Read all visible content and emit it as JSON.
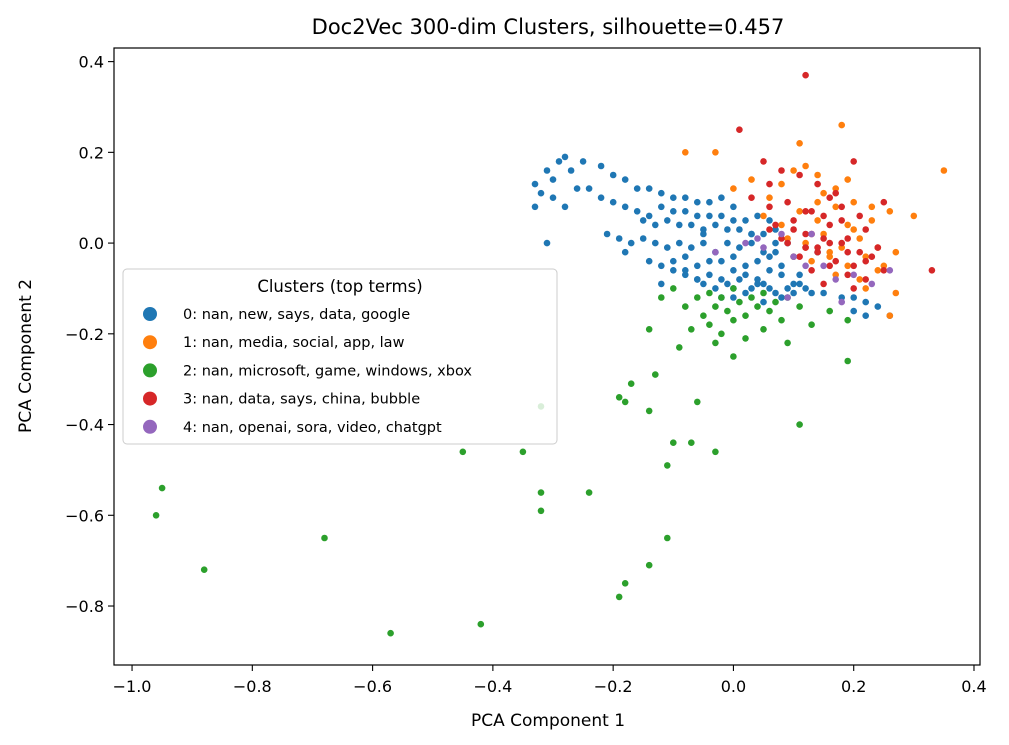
{
  "chart_data": {
    "type": "scatter",
    "title": "Doc2Vec 300-dim Clusters, silhouette=0.457",
    "xlabel": "PCA Component 1",
    "ylabel": "PCA Component 2",
    "xlim": [
      -1.03,
      0.41
    ],
    "ylim": [
      -0.93,
      0.43
    ],
    "xticks": [
      -1.0,
      -0.8,
      -0.6,
      -0.4,
      -0.2,
      0.0,
      0.2,
      0.4
    ],
    "xtick_labels": [
      "−1.0",
      "−0.8",
      "−0.6",
      "−0.4",
      "−0.2",
      "0.0",
      "0.2",
      "0.4"
    ],
    "yticks": [
      0.4,
      0.2,
      0.0,
      -0.2,
      -0.4,
      -0.6,
      -0.8
    ],
    "ytick_labels": [
      "0.4",
      "0.2",
      "0.0",
      "−0.2",
      "−0.4",
      "−0.6",
      "−0.8"
    ],
    "grid": false,
    "legend": {
      "title": "Clusters (top terms)",
      "placement": "center-left"
    },
    "series": [
      {
        "name": "0: nan, new, says, data, google",
        "color": "#1f77b4",
        "x": [
          -0.33,
          -0.33,
          -0.32,
          -0.31,
          -0.3,
          -0.29,
          -0.28,
          -0.27,
          -0.26,
          -0.3,
          -0.28,
          -0.25,
          -0.22,
          -0.2,
          -0.18,
          -0.16,
          -0.14,
          -0.12,
          -0.1,
          -0.08,
          -0.06,
          -0.04,
          -0.02,
          0.0,
          -0.24,
          -0.22,
          -0.2,
          -0.18,
          -0.16,
          -0.14,
          -0.12,
          -0.1,
          -0.08,
          -0.06,
          -0.04,
          -0.02,
          0.0,
          0.02,
          0.04,
          0.06,
          -0.15,
          -0.13,
          -0.11,
          -0.09,
          -0.07,
          -0.05,
          -0.03,
          -0.01,
          0.01,
          0.03,
          0.05,
          0.07,
          -0.21,
          -0.19,
          -0.17,
          -0.15,
          -0.13,
          -0.11,
          -0.09,
          -0.07,
          -0.05,
          -0.03,
          -0.01,
          0.01,
          0.03,
          0.05,
          0.07,
          0.09,
          -0.14,
          -0.12,
          -0.1,
          -0.08,
          -0.06,
          -0.04,
          -0.02,
          0.0,
          0.02,
          0.04,
          0.06,
          0.08,
          -0.1,
          -0.08,
          -0.06,
          -0.04,
          -0.02,
          0.0,
          0.02,
          0.04,
          0.06,
          0.08,
          0.1,
          -0.05,
          -0.03,
          -0.01,
          0.01,
          0.03,
          0.05,
          0.07,
          0.09,
          0.11,
          0.13,
          -0.02,
          0.0,
          0.02,
          0.04,
          0.06,
          0.08,
          0.1,
          0.12,
          0.15,
          0.18,
          0.2,
          0.22,
          0.24,
          0.2,
          0.22,
          -0.31,
          -0.18,
          -0.08,
          -0.05,
          0.03,
          0.07,
          0.1,
          0.14,
          -0.12,
          -0.06,
          0.0,
          0.05,
          0.11,
          0.26
        ],
        "y": [
          0.13,
          0.08,
          0.11,
          0.16,
          0.14,
          0.18,
          0.19,
          0.16,
          0.12,
          0.1,
          0.08,
          0.18,
          0.17,
          0.15,
          0.14,
          0.12,
          0.12,
          0.11,
          0.1,
          0.1,
          0.09,
          0.09,
          0.1,
          0.08,
          0.12,
          0.1,
          0.09,
          0.08,
          0.07,
          0.06,
          0.08,
          0.07,
          0.07,
          0.06,
          0.06,
          0.06,
          0.05,
          0.05,
          0.06,
          0.05,
          0.05,
          0.04,
          0.05,
          0.04,
          0.04,
          0.03,
          0.04,
          0.03,
          0.03,
          0.02,
          0.02,
          0.03,
          0.02,
          0.01,
          0.0,
          0.01,
          0.0,
          -0.01,
          0.0,
          -0.01,
          0.0,
          -0.02,
          0.0,
          -0.01,
          0.0,
          -0.02,
          -0.02,
          0.0,
          -0.04,
          -0.05,
          -0.04,
          -0.03,
          -0.05,
          -0.04,
          -0.04,
          -0.03,
          -0.05,
          -0.04,
          -0.03,
          -0.05,
          -0.06,
          -0.07,
          -0.08,
          -0.07,
          -0.08,
          -0.06,
          -0.07,
          -0.08,
          -0.06,
          -0.07,
          -0.09,
          -0.09,
          -0.1,
          -0.09,
          -0.08,
          -0.1,
          -0.09,
          -0.11,
          -0.1,
          -0.09,
          -0.11,
          -0.12,
          -0.1,
          -0.11,
          -0.09,
          -0.1,
          -0.12,
          -0.11,
          -0.1,
          -0.11,
          -0.12,
          -0.12,
          -0.13,
          -0.14,
          -0.15,
          -0.16,
          0.0,
          -0.02,
          -0.06,
          0.02,
          0.02,
          0.0,
          -0.03,
          -0.02,
          -0.09,
          -0.08,
          -0.12,
          -0.13,
          -0.07,
          -0.16
        ]
      },
      {
        "name": "1: nan, media, social, app, law",
        "color": "#ff7f0e",
        "x": [
          -0.08,
          -0.03,
          0.0,
          0.03,
          0.06,
          0.08,
          0.1,
          0.12,
          0.15,
          0.18,
          0.19,
          0.11,
          0.14,
          0.17,
          0.2,
          0.23,
          0.26,
          0.3,
          0.35,
          0.05,
          0.08,
          0.11,
          0.14,
          0.17,
          0.2,
          0.23,
          0.09,
          0.12,
          0.15,
          0.18,
          0.21,
          0.24,
          0.27,
          0.1,
          0.13,
          0.16,
          0.19,
          0.22,
          0.25,
          0.17,
          0.21,
          0.24,
          0.27,
          0.12,
          0.16,
          0.19,
          0.22,
          0.26,
          0.14
        ],
        "y": [
          0.2,
          0.2,
          0.12,
          0.14,
          0.1,
          0.13,
          0.16,
          0.17,
          0.11,
          0.26,
          0.14,
          0.22,
          0.15,
          0.12,
          0.09,
          0.08,
          0.07,
          0.06,
          0.16,
          0.06,
          0.04,
          0.07,
          0.05,
          0.08,
          0.03,
          0.05,
          0.01,
          0.0,
          0.02,
          -0.01,
          0.01,
          -0.01,
          -0.02,
          -0.03,
          -0.04,
          -0.02,
          -0.05,
          -0.03,
          -0.05,
          -0.07,
          -0.08,
          -0.06,
          -0.11,
          -0.01,
          -0.03,
          0.04,
          -0.1,
          -0.16,
          0.09
        ]
      },
      {
        "name": "2: nan, microsoft, game, windows, xbox",
        "color": "#2ca02c",
        "x": [
          -0.12,
          -0.1,
          -0.08,
          -0.06,
          -0.05,
          -0.04,
          -0.03,
          -0.02,
          -0.01,
          0.0,
          0.01,
          0.02,
          0.03,
          0.04,
          0.05,
          0.06,
          0.07,
          0.08,
          0.09,
          0.11,
          0.13,
          0.16,
          0.19,
          -0.14,
          -0.07,
          -0.04,
          -0.02,
          0.0,
          0.02,
          0.05,
          -0.09,
          -0.03,
          0.0,
          0.09,
          0.19,
          -0.17,
          -0.13,
          -0.18,
          -0.06,
          -0.14,
          -0.19,
          -0.32,
          -0.35,
          -0.45,
          -0.1,
          -0.07,
          -0.03,
          0.11,
          -0.11,
          -0.32,
          -0.32,
          -0.24,
          -0.95,
          -0.96,
          -0.68,
          -0.88,
          -0.11,
          -0.14,
          -0.18,
          -0.19,
          -0.42,
          -0.57
        ],
        "y": [
          -0.12,
          -0.1,
          -0.14,
          -0.12,
          -0.16,
          -0.11,
          -0.14,
          -0.12,
          -0.15,
          -0.1,
          -0.13,
          -0.16,
          -0.12,
          -0.14,
          -0.11,
          -0.15,
          -0.13,
          -0.17,
          -0.12,
          -0.14,
          -0.18,
          -0.15,
          -0.17,
          -0.19,
          -0.19,
          -0.18,
          -0.2,
          -0.17,
          -0.21,
          -0.19,
          -0.23,
          -0.22,
          -0.25,
          -0.22,
          -0.26,
          -0.31,
          -0.29,
          -0.35,
          -0.35,
          -0.37,
          -0.34,
          -0.36,
          -0.46,
          -0.46,
          -0.44,
          -0.44,
          -0.46,
          -0.4,
          -0.49,
          -0.55,
          -0.59,
          -0.55,
          -0.54,
          -0.6,
          -0.65,
          -0.72,
          -0.65,
          -0.71,
          -0.75,
          -0.78,
          -0.84,
          -0.86
        ]
      },
      {
        "name": "3: nan, data, says, china, bubble",
        "color": "#d62728",
        "x": [
          0.12,
          0.01,
          0.05,
          0.08,
          0.11,
          0.14,
          0.17,
          0.2,
          0.03,
          0.06,
          0.09,
          0.12,
          0.15,
          0.18,
          0.21,
          0.25,
          0.33,
          0.07,
          0.1,
          0.13,
          0.16,
          0.19,
          0.22,
          0.09,
          0.12,
          0.15,
          0.18,
          0.21,
          0.24,
          0.11,
          0.14,
          0.17,
          0.2,
          0.23,
          0.13,
          0.16,
          0.19,
          0.22,
          0.25,
          0.15,
          0.2,
          0.06,
          0.1,
          0.14,
          0.18,
          0.22,
          0.08,
          0.12,
          0.16,
          0.13,
          0.19,
          0.06,
          0.16
        ],
        "y": [
          0.37,
          0.25,
          0.18,
          0.16,
          0.15,
          0.13,
          0.11,
          0.18,
          0.1,
          0.08,
          0.09,
          0.07,
          0.06,
          0.05,
          0.06,
          0.09,
          -0.06,
          0.04,
          0.03,
          0.02,
          0.04,
          0.01,
          0.03,
          0.0,
          -0.01,
          0.01,
          0.0,
          -0.02,
          -0.01,
          -0.03,
          -0.02,
          -0.04,
          -0.05,
          -0.03,
          -0.06,
          -0.05,
          -0.07,
          -0.08,
          -0.06,
          -0.09,
          -0.1,
          0.03,
          0.05,
          -0.01,
          0.08,
          -0.04,
          0.01,
          0.02,
          0.0,
          0.07,
          -0.02,
          0.13,
          0.1
        ]
      },
      {
        "name": "4: nan, openai, sora, video, chatgpt",
        "color": "#9467bd",
        "x": [
          -0.03,
          0.02,
          0.05,
          0.08,
          0.12,
          0.17,
          0.23,
          0.26,
          0.04,
          0.1,
          0.15,
          0.2,
          0.09,
          0.18,
          0.13
        ],
        "y": [
          -0.02,
          0.0,
          -0.01,
          0.02,
          -0.05,
          -0.08,
          -0.09,
          -0.06,
          0.01,
          -0.03,
          -0.05,
          -0.07,
          -0.12,
          -0.13,
          0.02
        ]
      }
    ]
  }
}
